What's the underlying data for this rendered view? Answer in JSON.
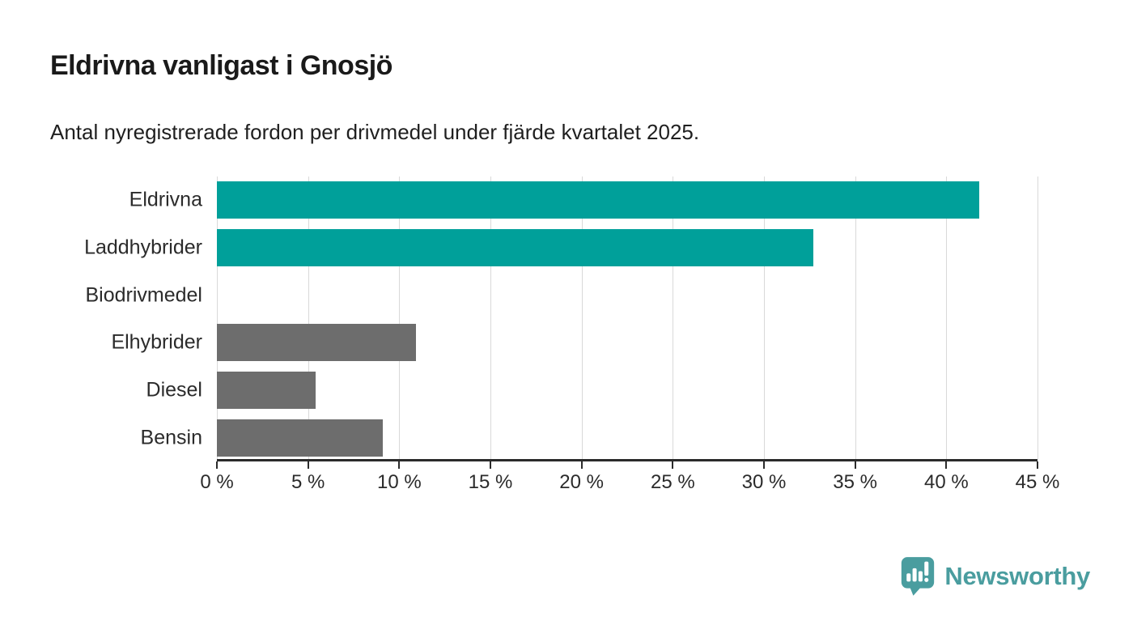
{
  "header": {
    "title": "Eldrivna vanligast i Gnosjö",
    "subtitle": "Antal nyregistrerade fordon per drivmedel under fjärde kvartalet 2025."
  },
  "chart_data": {
    "type": "bar",
    "orientation": "horizontal",
    "title": "Eldrivna vanligast i Gnosjö",
    "subtitle": "Antal nyregistrerade fordon per drivmedel under fjärde kvartalet 2025.",
    "categories": [
      "Eldrivna",
      "Laddhybrider",
      "Biodrivmedel",
      "Elhybrider",
      "Diesel",
      "Bensin"
    ],
    "values": [
      41.8,
      32.7,
      0,
      10.9,
      5.4,
      9.1
    ],
    "unit": "%",
    "bar_colors": [
      "#00a09a",
      "#00a09a",
      "#6d6d6d",
      "#6d6d6d",
      "#6d6d6d",
      "#6d6d6d"
    ],
    "xlabel": "",
    "ylabel": "",
    "xlim": [
      0,
      45
    ],
    "x_ticks": [
      0,
      5,
      10,
      15,
      20,
      25,
      30,
      35,
      40,
      45
    ],
    "x_tick_labels": [
      "0 %",
      "5 %",
      "10 %",
      "15 %",
      "20 %",
      "25 %",
      "30 %",
      "35 %",
      "40 %",
      "45 %"
    ],
    "grid": "vertical-on",
    "legend": "none"
  },
  "branding": {
    "name": "Newsworthy"
  },
  "colors": {
    "accent_teal": "#00a09a",
    "bar_gray": "#6d6d6d",
    "logo_teal": "#4a9d9f",
    "axis": "#2b2b2b",
    "gridline": "#d9d9d9",
    "text": "#1a1a1a"
  }
}
